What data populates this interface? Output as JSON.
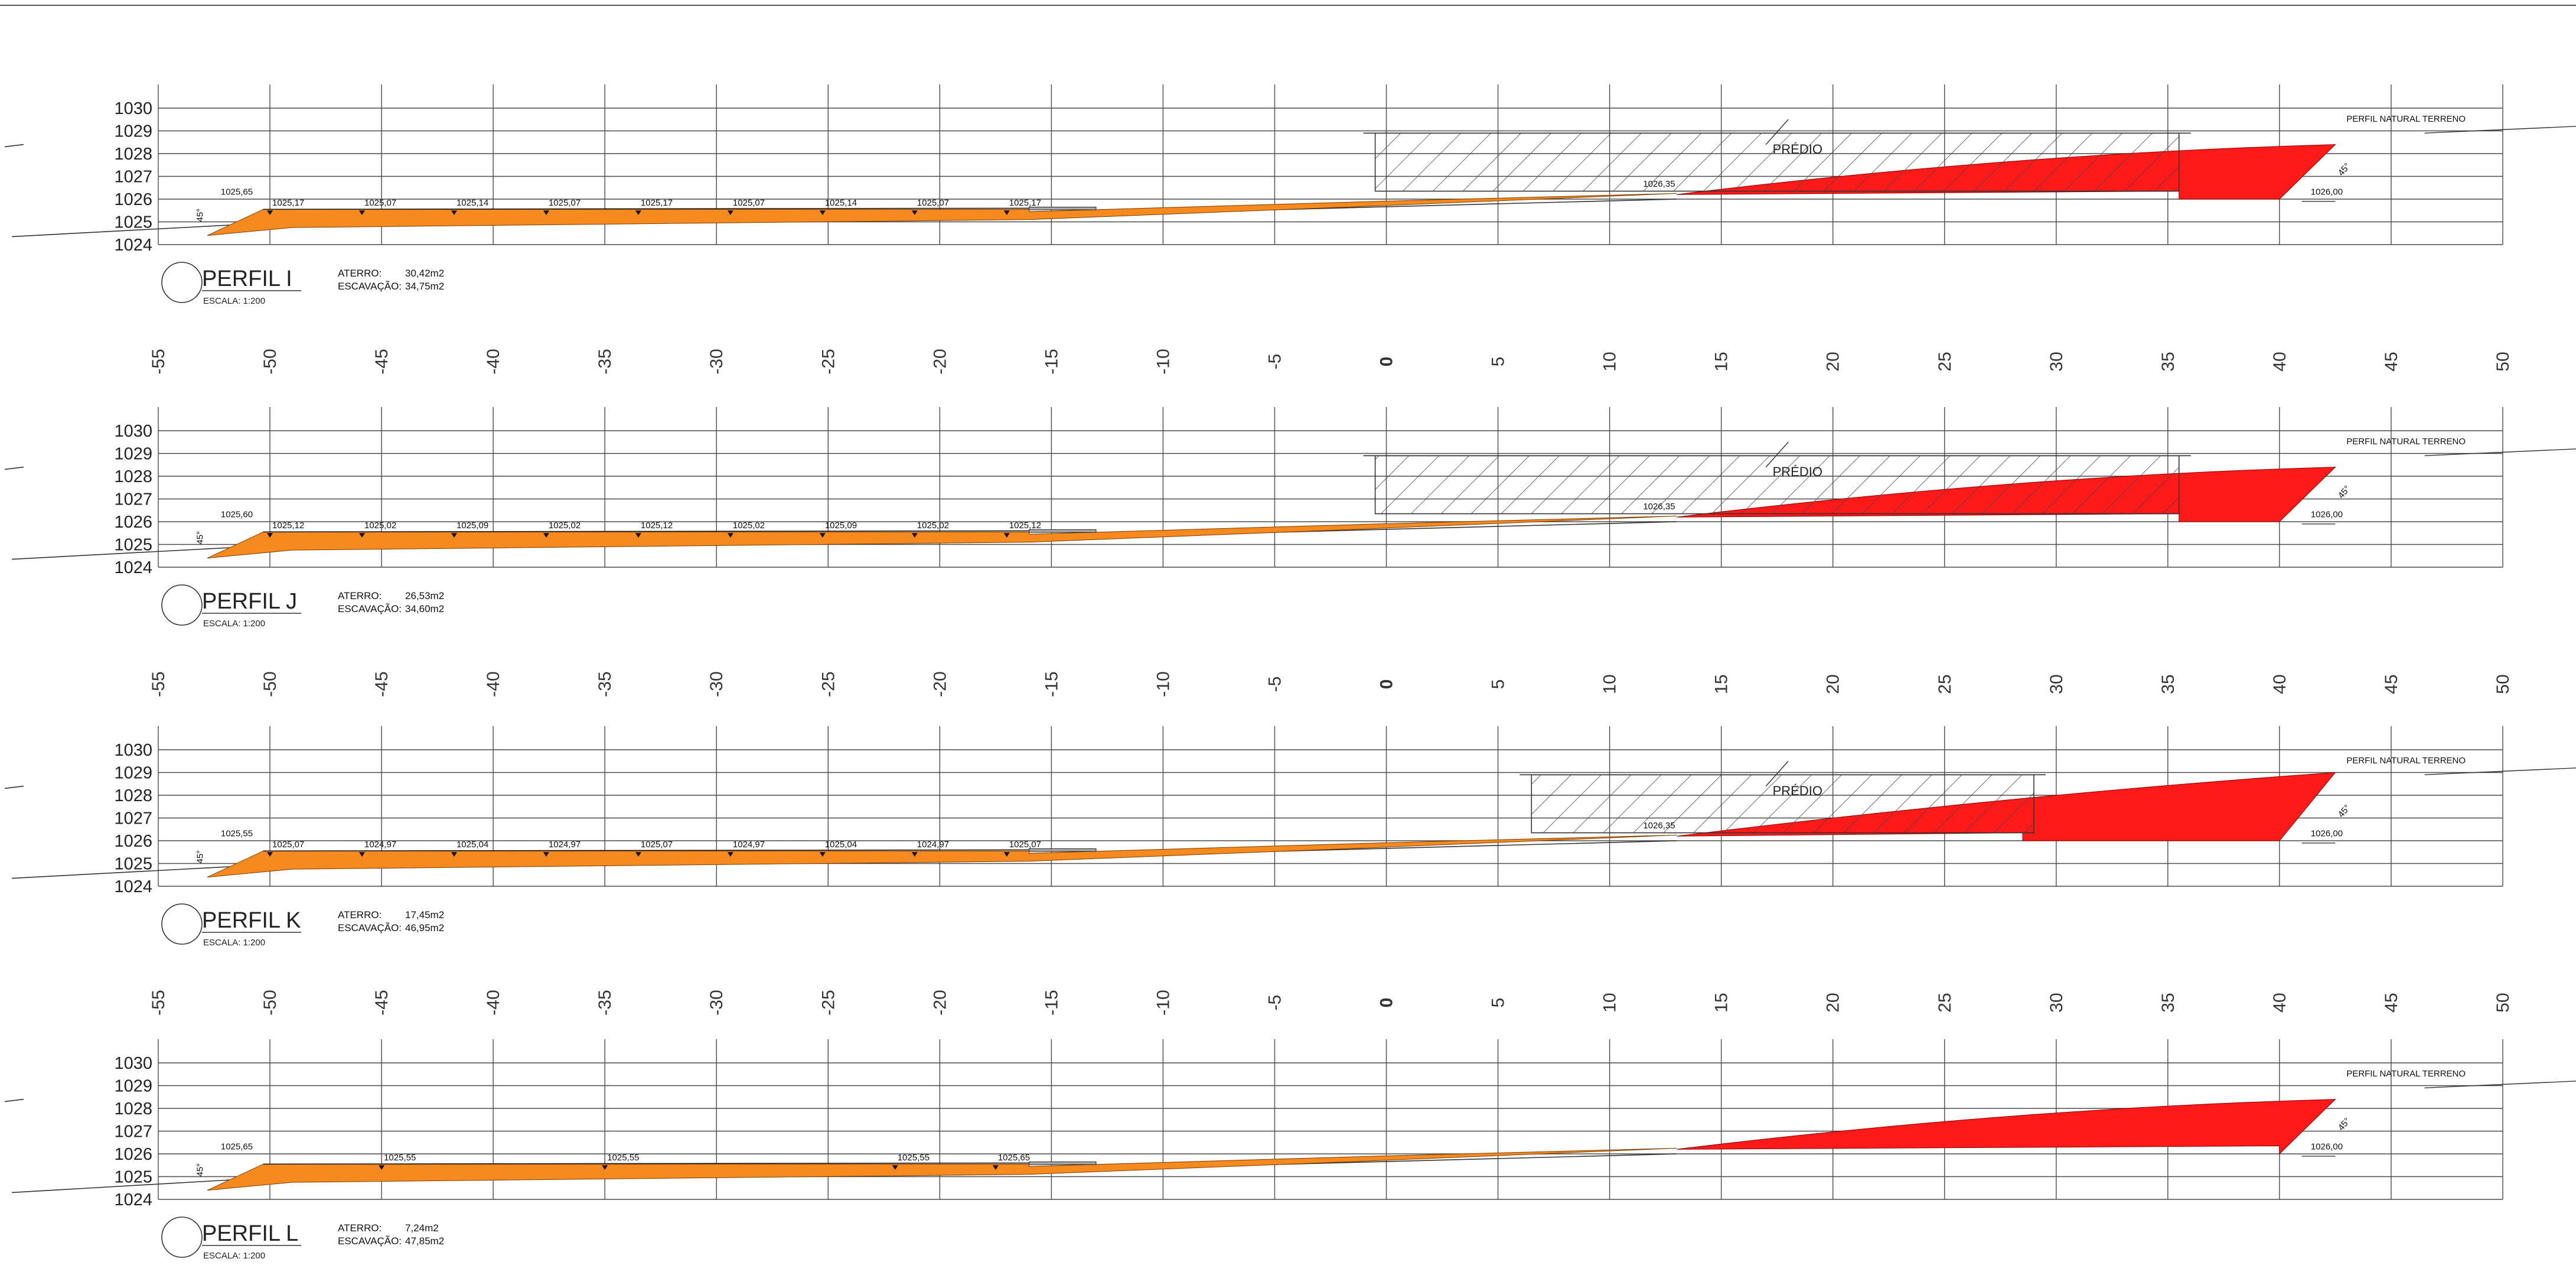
{
  "drawing": {
    "building_label": "PRÉDIO",
    "natural_terrain_label": "PERFIL NATURAL TERRENO",
    "aterro_label": "ATERRO:",
    "escavacao_label": "ESCAVAÇÃO:",
    "scale_text": "ESCALA: 1:200",
    "slope_text": "45°",
    "elevation_ticks": [
      "1030",
      "1029",
      "1028",
      "1027",
      "1026",
      "1025",
      "1024"
    ],
    "station_ticks": [
      "-55",
      "-50",
      "-45",
      "-40",
      "-35",
      "-30",
      "-25",
      "-20",
      "-15",
      "-10",
      "-5",
      "0",
      "5",
      "10",
      "15",
      "20",
      "25",
      "30",
      "35",
      "40",
      "45",
      "50"
    ],
    "colors": {
      "fill": "#f68a1e",
      "cut": "#ff1a1a",
      "grid": "#4a4a4a",
      "hatch": "#444444"
    }
  },
  "profiles": [
    {
      "title": "PERFIL I",
      "aterro": "30,42m2",
      "escavacao": "34,75m2",
      "left_level": "1025,65",
      "levels": [
        "1025,17",
        "1025,07",
        "1025,14",
        "1025,07",
        "1025,17",
        "1025,07",
        "1025,14",
        "1025,07",
        "1025,17"
      ],
      "pad_level": "1026,35",
      "right_level": "1026,00",
      "building": [
        -0.5,
        35.5
      ],
      "cut_toe": [
        35.5,
        40
      ],
      "cut_top": [
        42.5,
        1028.4
      ]
    },
    {
      "title": "PERFIL J",
      "aterro": "26,53m2",
      "escavacao": "34,60m2",
      "left_level": "1025,60",
      "levels": [
        "1025,12",
        "1025,02",
        "1025,09",
        "1025,02",
        "1025,12",
        "1025,02",
        "1025,09",
        "1025,02",
        "1025,12"
      ],
      "pad_level": "1026,35",
      "right_level": "1026,00",
      "building": [
        -0.5,
        35.5
      ],
      "cut_toe": [
        35.5,
        40
      ],
      "cut_top": [
        42.5,
        1028.4
      ]
    },
    {
      "title": "PERFIL K",
      "aterro": "17,45m2",
      "escavacao": "46,95m2",
      "left_level": "1025,55",
      "levels": [
        "1025,07",
        "1024,97",
        "1025,04",
        "1024,97",
        "1025,07",
        "1024,97",
        "1025,04",
        "1024,97",
        "1025,07"
      ],
      "pad_level": "1026,35",
      "right_level": "1026,00",
      "building": [
        6.5,
        29
      ],
      "cut_toe": [
        28.5,
        40
      ],
      "cut_top": [
        42.5,
        1029.0
      ]
    },
    {
      "title": "PERFIL L",
      "aterro": "7,24m2",
      "escavacao": "47,85m2",
      "left_level": "1025,65",
      "levels": [
        "1025,55",
        "1025,55",
        "1025,55",
        "1025,65"
      ],
      "pad_level": "",
      "right_level": "1026,00",
      "building": null,
      "cut_toe": [
        40,
        40
      ],
      "cut_top": [
        42.5,
        1028.4
      ]
    }
  ]
}
